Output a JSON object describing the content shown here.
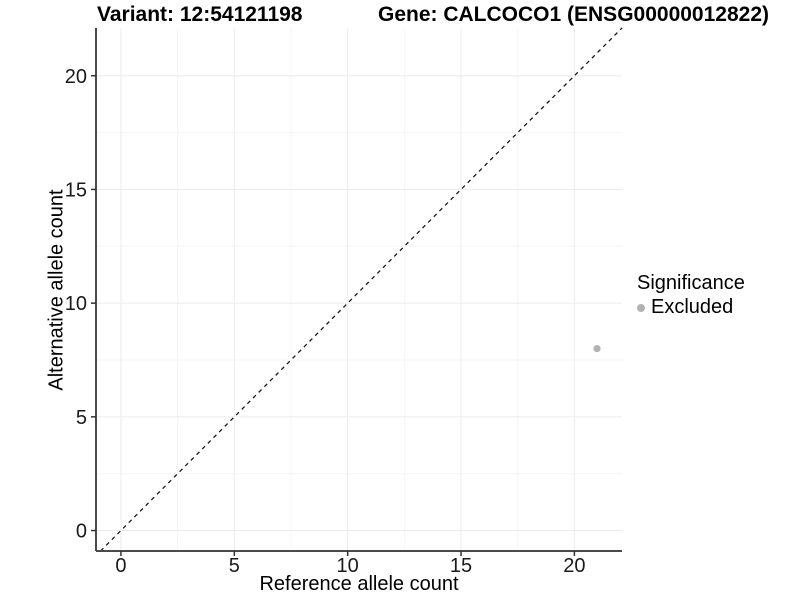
{
  "header": {
    "variant_title": "Variant: 12:54121198",
    "gene_title": "Gene: CALCOCO1 (ENSG00000012822)"
  },
  "colors": {
    "background": "#ffffff",
    "axis_line": "#4a4a4a",
    "tick_mark": "#333333",
    "tick_label": "#1a1a1a",
    "grid_major": "#ececec",
    "grid_minor": "#f5f5f5",
    "identity_line": "#1a1a1a",
    "excluded_point": "#b3b3b3"
  },
  "chart_data": {
    "type": "scatter",
    "title": "",
    "xlabel": "Reference allele count",
    "ylabel": "Alternative allele count",
    "xlim": [
      -1.1,
      22.1
    ],
    "ylim": [
      -0.9,
      22.1
    ],
    "xticks": [
      0,
      5,
      10,
      15,
      20
    ],
    "yticks": [
      0,
      5,
      10,
      15,
      20
    ],
    "grid": "faint major and minor gridlines",
    "identity_line": {
      "equation": "y = x",
      "style": "dashed",
      "color": "#1a1a1a"
    },
    "series": [
      {
        "name": "Excluded",
        "color": "#b3b3b3",
        "points": [
          {
            "x": 21,
            "y": 8
          }
        ]
      }
    ],
    "legend": {
      "title": "Significance",
      "position": "right",
      "entries": [
        {
          "label": "Excluded",
          "color": "#b3b3b3"
        }
      ]
    }
  }
}
